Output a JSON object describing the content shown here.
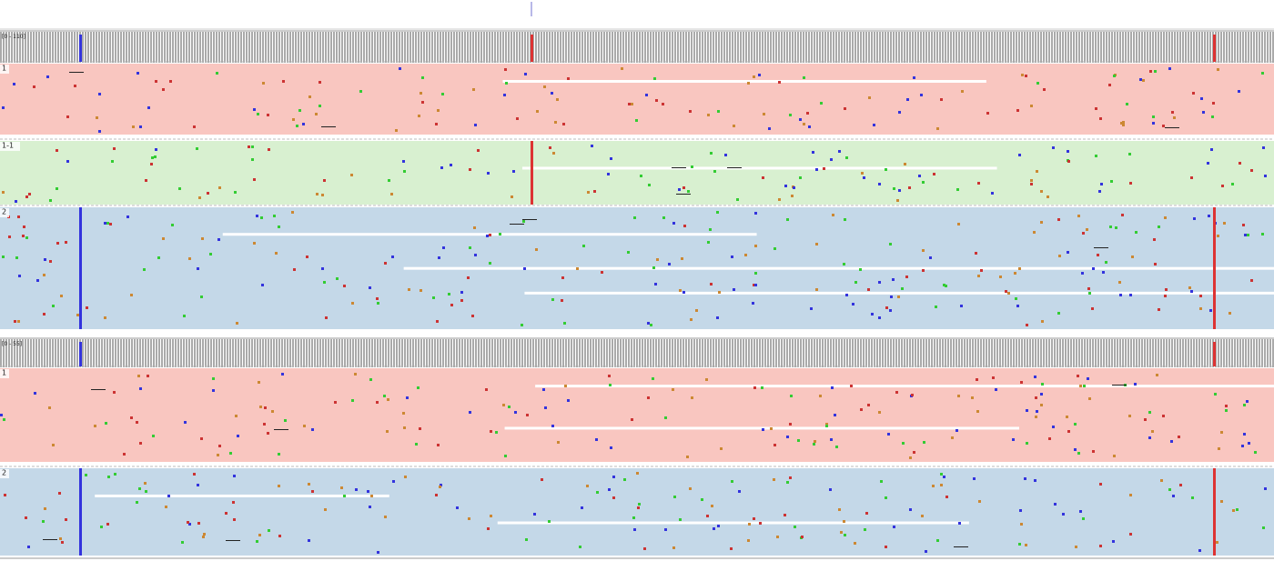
{
  "tracks": [
    {
      "range_label": "[0 - 110]",
      "groups": [
        {
          "label": "1"
        },
        {
          "label": "1-1"
        },
        {
          "label": "2"
        }
      ]
    },
    {
      "range_label": "[0 - 55]",
      "groups": [
        {
          "label": "1"
        },
        {
          "label": "2"
        }
      ]
    }
  ]
}
